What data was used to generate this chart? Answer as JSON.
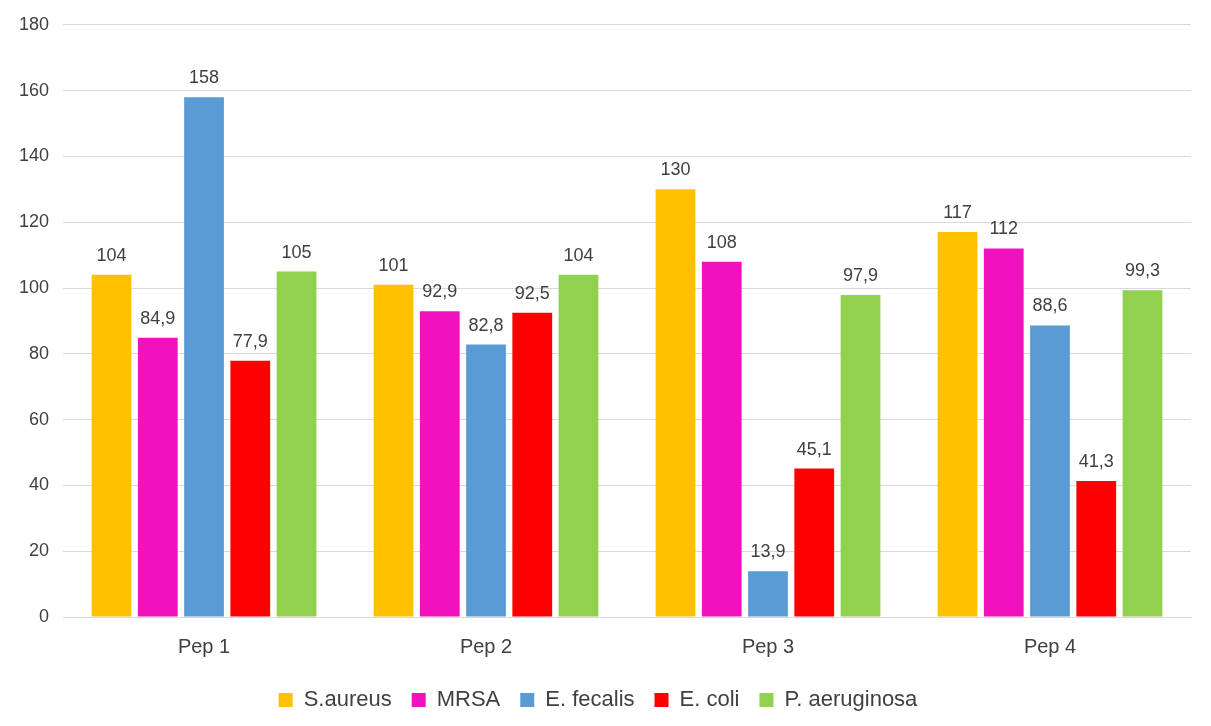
{
  "chart_data": {
    "type": "bar",
    "categories": [
      "Pep 1",
      "Pep 2",
      "Pep 3",
      "Pep 4"
    ],
    "series": [
      {
        "name": "S.aureus",
        "color": "#ffc000",
        "values": [
          104,
          101,
          130,
          117
        ],
        "value_labels": [
          "104",
          "101",
          "130",
          "117"
        ]
      },
      {
        "name": "MRSA",
        "color": "#f012be",
        "values": [
          84.9,
          92.9,
          108,
          112
        ],
        "value_labels": [
          "84,9",
          "92,9",
          "108",
          "112"
        ]
      },
      {
        "name": "E. fecalis",
        "color": "#5b9bd5",
        "values": [
          158,
          82.8,
          13.9,
          88.6
        ],
        "value_labels": [
          "158",
          "82,8",
          "13,9",
          "88,6"
        ]
      },
      {
        "name": "E. coli",
        "color": "#ff0000",
        "values": [
          77.9,
          92.5,
          45.1,
          41.3
        ],
        "value_labels": [
          "77,9",
          "92,5",
          "45,1",
          "41,3"
        ]
      },
      {
        "name": "P. aeruginosa",
        "color": "#92d050",
        "values": [
          105,
          104,
          97.9,
          99.3
        ],
        "value_labels": [
          "105",
          "104",
          "97,9",
          "99,3"
        ]
      }
    ],
    "ylim": [
      0,
      180
    ],
    "yticks": [
      0,
      20,
      40,
      60,
      80,
      100,
      120,
      140,
      160,
      180
    ],
    "grid": "y",
    "legend": "bottom"
  }
}
